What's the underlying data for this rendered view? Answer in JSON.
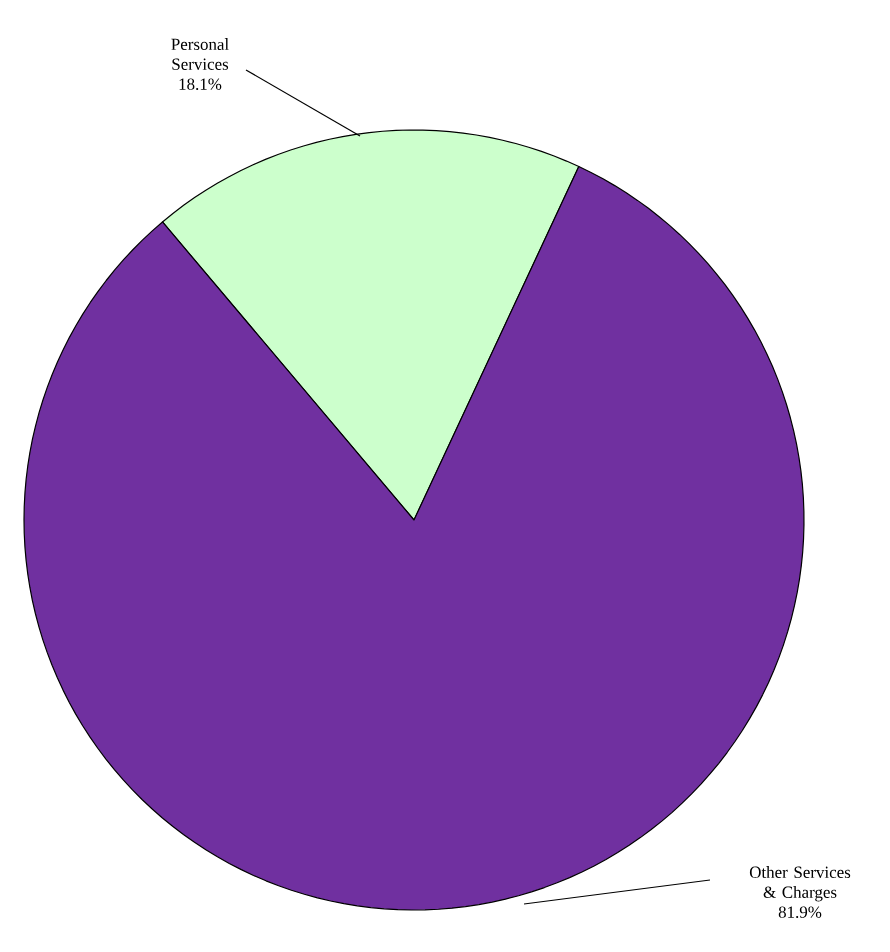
{
  "chart_data": {
    "type": "pie",
    "categories": [
      "Personal Services",
      "Other Services & Charges"
    ],
    "values": [
      18.1,
      81.9
    ],
    "colors": [
      "#ccffcc",
      "#7030a0"
    ],
    "value_labels": [
      "18.1%",
      "81.9%"
    ]
  }
}
